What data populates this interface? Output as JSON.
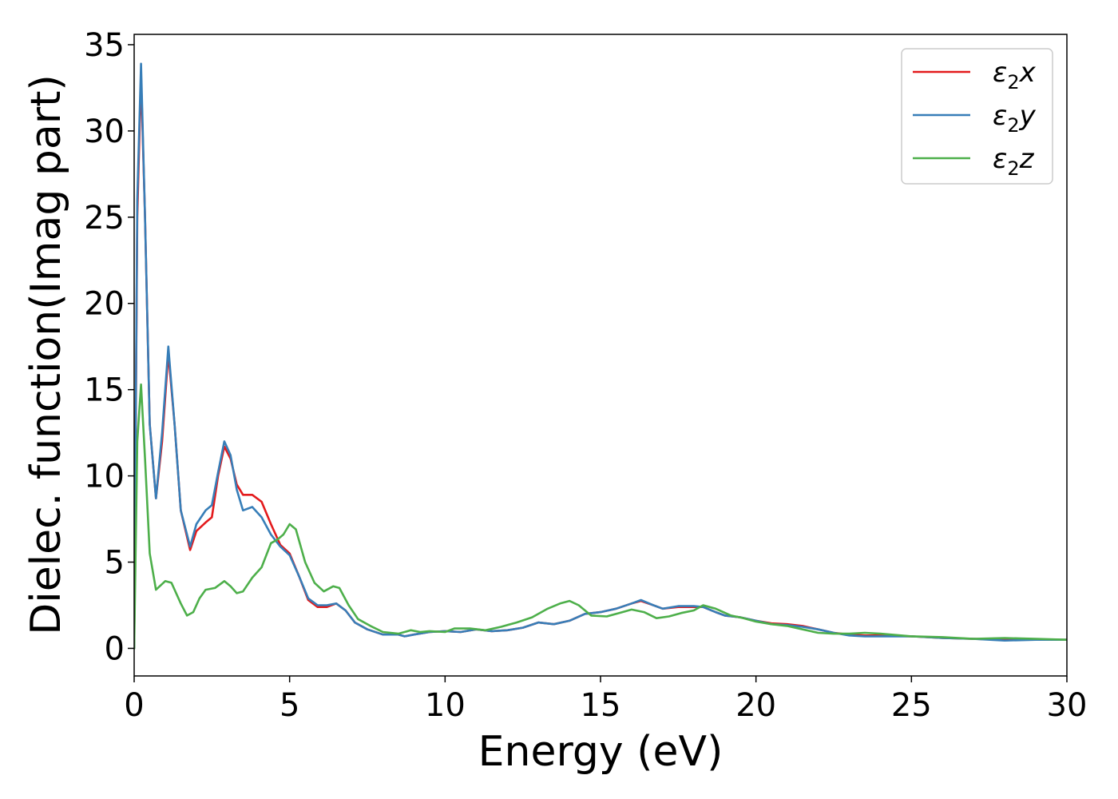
{
  "chart_data": {
    "type": "line",
    "xlabel": "Energy (eV)",
    "ylabel": "Dielec. function(Imag part)",
    "xlim": [
      0,
      30
    ],
    "ylim": [
      -1.6,
      35.6
    ],
    "xticks": [
      0,
      5,
      10,
      15,
      20,
      25,
      30
    ],
    "yticks": [
      0,
      5,
      10,
      15,
      20,
      25,
      30,
      35
    ],
    "grid": false,
    "legend_position": "top-right",
    "series": [
      {
        "name": "ε₂x",
        "legend_base": "ε",
        "legend_sub": "2",
        "legend_suffix": "x",
        "color": "#e31a1c",
        "points": [
          [
            0,
            0
          ],
          [
            0.1,
            25
          ],
          [
            0.22,
            33.2
          ],
          [
            0.35,
            25
          ],
          [
            0.5,
            13
          ],
          [
            0.7,
            8.7
          ],
          [
            0.9,
            12
          ],
          [
            1.1,
            17.1
          ],
          [
            1.3,
            13
          ],
          [
            1.5,
            8
          ],
          [
            1.8,
            5.7
          ],
          [
            2.0,
            6.8
          ],
          [
            2.3,
            7.3
          ],
          [
            2.5,
            7.6
          ],
          [
            2.7,
            10
          ],
          [
            2.9,
            11.7
          ],
          [
            3.1,
            11
          ],
          [
            3.3,
            9.5
          ],
          [
            3.5,
            8.9
          ],
          [
            3.8,
            8.9
          ],
          [
            4.1,
            8.5
          ],
          [
            4.4,
            7.2
          ],
          [
            4.7,
            6
          ],
          [
            5.0,
            5.5
          ],
          [
            5.3,
            4.2
          ],
          [
            5.6,
            2.8
          ],
          [
            5.9,
            2.4
          ],
          [
            6.2,
            2.4
          ],
          [
            6.5,
            2.6
          ],
          [
            6.8,
            2.2
          ],
          [
            7.1,
            1.5
          ],
          [
            7.5,
            1.1
          ],
          [
            8,
            0.8
          ],
          [
            8.5,
            0.8
          ],
          [
            8.7,
            0.7
          ],
          [
            9,
            0.8
          ],
          [
            9.5,
            0.95
          ],
          [
            10,
            1.0
          ],
          [
            10.5,
            0.95
          ],
          [
            11,
            1.1
          ],
          [
            11.5,
            1.0
          ],
          [
            12,
            1.05
          ],
          [
            12.5,
            1.2
          ],
          [
            13,
            1.5
          ],
          [
            13.5,
            1.4
          ],
          [
            14,
            1.6
          ],
          [
            14.5,
            2.0
          ],
          [
            15,
            2.1
          ],
          [
            15.5,
            2.3
          ],
          [
            16,
            2.6
          ],
          [
            16.3,
            2.75
          ],
          [
            16.7,
            2.5
          ],
          [
            17,
            2.3
          ],
          [
            17.5,
            2.4
          ],
          [
            18,
            2.4
          ],
          [
            18.3,
            2.4
          ],
          [
            18.7,
            2.1
          ],
          [
            19,
            1.9
          ],
          [
            19.5,
            1.8
          ],
          [
            20,
            1.6
          ],
          [
            20.5,
            1.45
          ],
          [
            21,
            1.4
          ],
          [
            21.5,
            1.3
          ],
          [
            22,
            1.1
          ],
          [
            22.5,
            0.9
          ],
          [
            23,
            0.8
          ],
          [
            23.5,
            0.75
          ],
          [
            24,
            0.75
          ],
          [
            25,
            0.7
          ],
          [
            26,
            0.6
          ],
          [
            27,
            0.55
          ],
          [
            28,
            0.5
          ],
          [
            29,
            0.5
          ],
          [
            30,
            0.5
          ]
        ]
      },
      {
        "name": "ε₂y",
        "legend_base": "ε",
        "legend_sub": "2",
        "legend_suffix": "y",
        "color": "#377eb8",
        "points": [
          [
            0,
            0
          ],
          [
            0.1,
            26
          ],
          [
            0.22,
            33.9
          ],
          [
            0.35,
            25
          ],
          [
            0.5,
            13
          ],
          [
            0.7,
            8.7
          ],
          [
            0.9,
            12.5
          ],
          [
            1.1,
            17.5
          ],
          [
            1.3,
            13
          ],
          [
            1.5,
            8
          ],
          [
            1.8,
            5.9
          ],
          [
            2.0,
            7.2
          ],
          [
            2.3,
            8.0
          ],
          [
            2.5,
            8.3
          ],
          [
            2.7,
            10.2
          ],
          [
            2.9,
            12.0
          ],
          [
            3.1,
            11.2
          ],
          [
            3.3,
            9.2
          ],
          [
            3.5,
            8.0
          ],
          [
            3.8,
            8.2
          ],
          [
            4.1,
            7.6
          ],
          [
            4.4,
            6.6
          ],
          [
            4.7,
            5.9
          ],
          [
            5.0,
            5.4
          ],
          [
            5.3,
            4.2
          ],
          [
            5.6,
            2.9
          ],
          [
            5.9,
            2.5
          ],
          [
            6.2,
            2.5
          ],
          [
            6.5,
            2.6
          ],
          [
            6.8,
            2.2
          ],
          [
            7.1,
            1.5
          ],
          [
            7.5,
            1.1
          ],
          [
            8,
            0.8
          ],
          [
            8.5,
            0.8
          ],
          [
            8.7,
            0.7
          ],
          [
            9,
            0.8
          ],
          [
            9.5,
            0.95
          ],
          [
            10,
            1.0
          ],
          [
            10.5,
            0.95
          ],
          [
            11,
            1.1
          ],
          [
            11.5,
            1.0
          ],
          [
            12,
            1.05
          ],
          [
            12.5,
            1.2
          ],
          [
            13,
            1.5
          ],
          [
            13.5,
            1.4
          ],
          [
            14,
            1.6
          ],
          [
            14.5,
            2.0
          ],
          [
            15,
            2.1
          ],
          [
            15.5,
            2.3
          ],
          [
            16,
            2.6
          ],
          [
            16.3,
            2.8
          ],
          [
            16.7,
            2.5
          ],
          [
            17,
            2.3
          ],
          [
            17.5,
            2.45
          ],
          [
            18,
            2.45
          ],
          [
            18.3,
            2.4
          ],
          [
            18.7,
            2.1
          ],
          [
            19,
            1.9
          ],
          [
            19.5,
            1.8
          ],
          [
            20,
            1.6
          ],
          [
            20.5,
            1.4
          ],
          [
            21,
            1.35
          ],
          [
            21.5,
            1.25
          ],
          [
            22,
            1.1
          ],
          [
            22.5,
            0.9
          ],
          [
            23,
            0.75
          ],
          [
            23.5,
            0.7
          ],
          [
            24,
            0.7
          ],
          [
            25,
            0.7
          ],
          [
            26,
            0.6
          ],
          [
            27,
            0.55
          ],
          [
            28,
            0.45
          ],
          [
            29,
            0.5
          ],
          [
            30,
            0.5
          ]
        ]
      },
      {
        "name": "ε₂z",
        "legend_base": "ε",
        "legend_sub": "2",
        "legend_suffix": "z",
        "color": "#4daf4a",
        "points": [
          [
            0,
            0
          ],
          [
            0.1,
            12
          ],
          [
            0.22,
            15.3
          ],
          [
            0.35,
            11
          ],
          [
            0.5,
            5.5
          ],
          [
            0.7,
            3.4
          ],
          [
            1.0,
            3.9
          ],
          [
            1.2,
            3.8
          ],
          [
            1.5,
            2.6
          ],
          [
            1.7,
            1.9
          ],
          [
            1.9,
            2.1
          ],
          [
            2.1,
            2.9
          ],
          [
            2.3,
            3.4
          ],
          [
            2.6,
            3.5
          ],
          [
            2.9,
            3.9
          ],
          [
            3.1,
            3.6
          ],
          [
            3.3,
            3.2
          ],
          [
            3.5,
            3.3
          ],
          [
            3.8,
            4.1
          ],
          [
            4.1,
            4.7
          ],
          [
            4.4,
            6.1
          ],
          [
            4.6,
            6.3
          ],
          [
            4.8,
            6.6
          ],
          [
            5.0,
            7.2
          ],
          [
            5.2,
            6.9
          ],
          [
            5.5,
            5.0
          ],
          [
            5.8,
            3.8
          ],
          [
            6.1,
            3.3
          ],
          [
            6.4,
            3.6
          ],
          [
            6.6,
            3.5
          ],
          [
            6.9,
            2.5
          ],
          [
            7.2,
            1.7
          ],
          [
            7.6,
            1.3
          ],
          [
            8,
            0.95
          ],
          [
            8.5,
            0.85
          ],
          [
            8.9,
            1.05
          ],
          [
            9.2,
            0.95
          ],
          [
            9.5,
            1.0
          ],
          [
            10,
            0.95
          ],
          [
            10.3,
            1.15
          ],
          [
            10.8,
            1.15
          ],
          [
            11.3,
            1.05
          ],
          [
            11.8,
            1.25
          ],
          [
            12.3,
            1.5
          ],
          [
            12.8,
            1.8
          ],
          [
            13.3,
            2.3
          ],
          [
            13.7,
            2.6
          ],
          [
            14.0,
            2.75
          ],
          [
            14.3,
            2.5
          ],
          [
            14.7,
            1.9
          ],
          [
            15.2,
            1.85
          ],
          [
            15.6,
            2.05
          ],
          [
            16.0,
            2.25
          ],
          [
            16.4,
            2.1
          ],
          [
            16.8,
            1.75
          ],
          [
            17.2,
            1.85
          ],
          [
            17.6,
            2.05
          ],
          [
            18.0,
            2.2
          ],
          [
            18.3,
            2.5
          ],
          [
            18.7,
            2.3
          ],
          [
            19.2,
            1.9
          ],
          [
            19.6,
            1.75
          ],
          [
            20,
            1.55
          ],
          [
            20.5,
            1.4
          ],
          [
            21,
            1.3
          ],
          [
            21.5,
            1.1
          ],
          [
            22,
            0.9
          ],
          [
            22.5,
            0.85
          ],
          [
            23,
            0.85
          ],
          [
            23.5,
            0.9
          ],
          [
            24,
            0.85
          ],
          [
            25,
            0.7
          ],
          [
            26,
            0.65
          ],
          [
            27,
            0.55
          ],
          [
            28,
            0.6
          ],
          [
            29,
            0.55
          ],
          [
            30,
            0.5
          ]
        ]
      }
    ]
  }
}
